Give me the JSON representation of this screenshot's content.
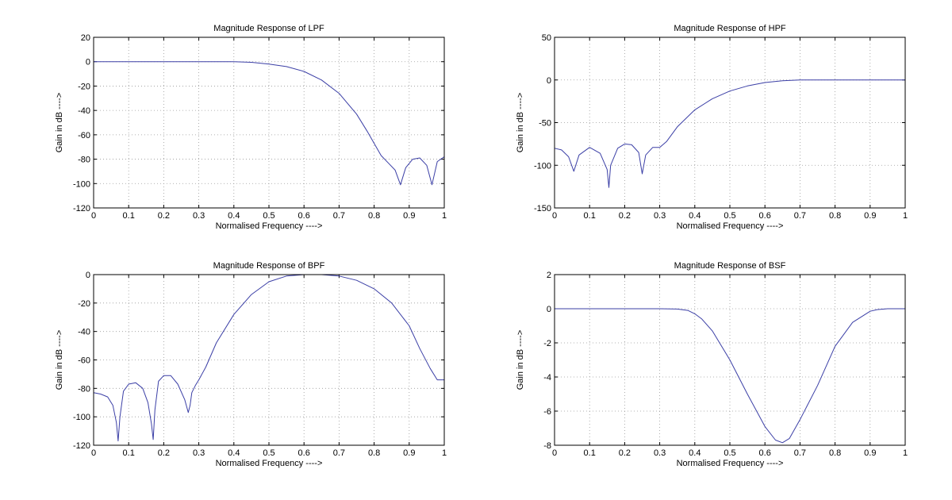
{
  "chart_data": [
    {
      "type": "line",
      "title": "Magnitude Response of LPF",
      "xlabel": "Normalised Frequency ---->",
      "ylabel": "Gain in dB ---->",
      "xlim": [
        0,
        1
      ],
      "ylim": [
        -120,
        20
      ],
      "xticks": [
        "0",
        "0.1",
        "0.2",
        "0.3",
        "0.4",
        "0.5",
        "0.6",
        "0.7",
        "0.8",
        "0.9",
        "1"
      ],
      "yticks": [
        "-120",
        "-100",
        "-80",
        "-60",
        "-40",
        "-20",
        "0",
        "20"
      ],
      "grid": true,
      "series": [
        {
          "color": "#3b3fa6",
          "x": [
            0,
            0.1,
            0.2,
            0.3,
            0.4,
            0.45,
            0.5,
            0.55,
            0.6,
            0.65,
            0.7,
            0.75,
            0.78,
            0.8,
            0.82,
            0.84,
            0.86,
            0.875,
            0.89,
            0.91,
            0.93,
            0.95,
            0.965,
            0.98,
            1.0
          ],
          "y": [
            0,
            0,
            0,
            0,
            0,
            -0.5,
            -2,
            -4,
            -8,
            -15,
            -26,
            -43,
            -57,
            -67,
            -77,
            -83,
            -89,
            -101,
            -87,
            -80,
            -79,
            -85,
            -101,
            -82,
            -78
          ]
        }
      ]
    },
    {
      "type": "line",
      "title": "Magnitude Response of HPF",
      "xlabel": "Normalised Frequency ---->",
      "ylabel": "Gain in dB ---->",
      "xlim": [
        0,
        1
      ],
      "ylim": [
        -150,
        50
      ],
      "xticks": [
        "0",
        "0.1",
        "0.2",
        "0.3",
        "0.4",
        "0.5",
        "0.6",
        "0.7",
        "0.8",
        "0.9",
        "1"
      ],
      "yticks": [
        "-150",
        "-100",
        "-50",
        "0",
        "50"
      ],
      "grid": true,
      "series": [
        {
          "color": "#3b3fa6",
          "x": [
            0,
            0.02,
            0.04,
            0.055,
            0.07,
            0.1,
            0.13,
            0.15,
            0.155,
            0.16,
            0.18,
            0.2,
            0.22,
            0.24,
            0.25,
            0.26,
            0.28,
            0.3,
            0.32,
            0.35,
            0.4,
            0.45,
            0.5,
            0.55,
            0.6,
            0.65,
            0.7,
            0.8,
            0.9,
            1.0
          ],
          "y": [
            -80,
            -82,
            -90,
            -107,
            -88,
            -79,
            -86,
            -105,
            -126,
            -100,
            -80,
            -75,
            -76,
            -85,
            -110,
            -88,
            -79,
            -79,
            -72,
            -55,
            -35,
            -22,
            -13,
            -7,
            -3,
            -1,
            0,
            0,
            0,
            0
          ]
        }
      ]
    },
    {
      "type": "line",
      "title": "Magnitude Response of BPF",
      "xlabel": "Normalised Frequency ---->",
      "ylabel": "Gain in dB ---->",
      "xlim": [
        0,
        1
      ],
      "ylim": [
        -120,
        0
      ],
      "xticks": [
        "0",
        "0.1",
        "0.2",
        "0.3",
        "0.4",
        "0.5",
        "0.6",
        "0.7",
        "0.8",
        "0.9",
        "1"
      ],
      "yticks": [
        "-120",
        "-100",
        "-80",
        "-60",
        "-40",
        "-20",
        "0"
      ],
      "grid": true,
      "series": [
        {
          "color": "#3b3fa6",
          "x": [
            0,
            0.02,
            0.04,
            0.055,
            0.065,
            0.07,
            0.075,
            0.085,
            0.1,
            0.12,
            0.14,
            0.155,
            0.165,
            0.17,
            0.175,
            0.185,
            0.2,
            0.22,
            0.24,
            0.26,
            0.27,
            0.275,
            0.28,
            0.29,
            0.3,
            0.32,
            0.35,
            0.4,
            0.45,
            0.5,
            0.55,
            0.6,
            0.65,
            0.7,
            0.75,
            0.8,
            0.85,
            0.9,
            0.93,
            0.96,
            0.98,
            1.0
          ],
          "y": [
            -83,
            -84,
            -86,
            -92,
            -104,
            -117,
            -100,
            -82,
            -77,
            -76,
            -80,
            -90,
            -105,
            -116,
            -95,
            -75,
            -71,
            -71,
            -77,
            -88,
            -97,
            -92,
            -83,
            -78,
            -74,
            -65,
            -48,
            -28,
            -14,
            -5,
            -1,
            0,
            0,
            -1,
            -4,
            -10,
            -20,
            -36,
            -52,
            -66,
            -74,
            -74
          ]
        }
      ]
    },
    {
      "type": "line",
      "title": "Magnitude Response of BSF",
      "xlabel": "Normalised Frequency ---->",
      "ylabel": "Gain in dB ---->",
      "xlim": [
        0,
        1
      ],
      "ylim": [
        -8,
        2
      ],
      "xticks": [
        "0",
        "0.1",
        "0.2",
        "0.3",
        "0.4",
        "0.5",
        "0.6",
        "0.7",
        "0.8",
        "0.9",
        "1"
      ],
      "yticks": [
        "-8",
        "-6",
        "-4",
        "-2",
        "0",
        "2"
      ],
      "grid": true,
      "series": [
        {
          "color": "#3b3fa6",
          "x": [
            0,
            0.1,
            0.2,
            0.3,
            0.35,
            0.38,
            0.4,
            0.42,
            0.45,
            0.5,
            0.55,
            0.6,
            0.63,
            0.65,
            0.67,
            0.7,
            0.75,
            0.8,
            0.85,
            0.9,
            0.92,
            0.95,
            1.0
          ],
          "y": [
            0,
            0,
            0,
            0,
            -0.02,
            -0.1,
            -0.3,
            -0.6,
            -1.3,
            -3,
            -5,
            -6.9,
            -7.7,
            -7.85,
            -7.6,
            -6.5,
            -4.5,
            -2.2,
            -0.8,
            -0.15,
            -0.05,
            0,
            0
          ]
        }
      ]
    }
  ]
}
